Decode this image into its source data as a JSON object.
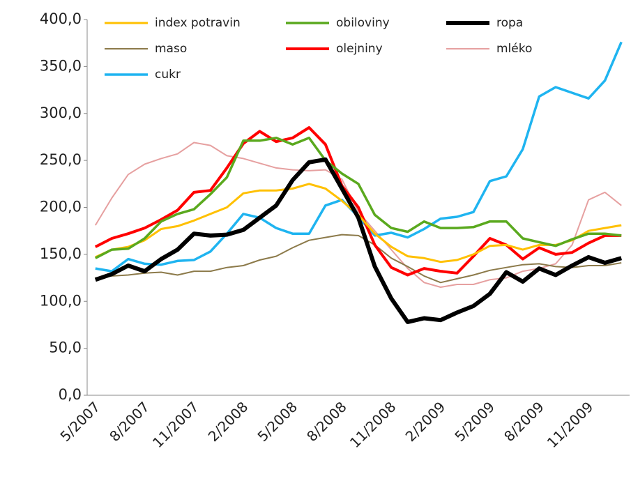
{
  "chart_data": {
    "type": "line",
    "categories": [
      "5/2007",
      null,
      null,
      "8/2007",
      null,
      null,
      "11/2007",
      null,
      null,
      "2/2008",
      null,
      null,
      "5/2008",
      null,
      null,
      "8/2008",
      null,
      null,
      "11/2008",
      null,
      null,
      "2/2009",
      null,
      null,
      "5/2009",
      null,
      null,
      "8/2009",
      null,
      null,
      "11/2009",
      null,
      null
    ],
    "ylim": [
      0,
      400
    ],
    "yticks": [
      {
        "value": 0,
        "label": "0,0"
      },
      {
        "value": 50,
        "label": "50,0"
      },
      {
        "value": 100,
        "label": "100,0"
      },
      {
        "value": 150,
        "label": "150,0"
      },
      {
        "value": 200,
        "label": "200,0"
      },
      {
        "value": 250,
        "label": "250,0"
      },
      {
        "value": 300,
        "label": "300,0"
      },
      {
        "value": 350,
        "label": "350,0"
      },
      {
        "value": 400,
        "label": "400,0"
      }
    ],
    "grid": false,
    "legend": "top",
    "series": [
      {
        "name": "index potravin",
        "color": "#ffc000",
        "line_width": 3,
        "values": [
          147,
          155,
          158,
          165,
          177,
          180,
          186,
          193,
          200,
          215,
          218,
          218,
          220,
          225,
          220,
          207,
          192,
          172,
          158,
          148,
          146,
          142,
          144,
          150,
          159,
          160,
          155,
          160,
          160,
          165,
          175,
          178,
          181
        ]
      },
      {
        "name": "obiloviny",
        "color": "#5aa91e",
        "line_width": 3.5,
        "values": [
          146,
          155,
          156,
          167,
          185,
          193,
          198,
          214,
          232,
          271,
          271,
          274,
          267,
          274,
          250,
          236,
          225,
          192,
          178,
          174,
          185,
          178,
          178,
          179,
          185,
          185,
          167,
          163,
          159,
          166,
          172,
          172,
          170
        ]
      },
      {
        "name": "ropa",
        "color": "#000000",
        "line_width": 6,
        "values": [
          123,
          129,
          138,
          132,
          145,
          155,
          172,
          170,
          171,
          176,
          189,
          202,
          229,
          248,
          251,
          220,
          189,
          137,
          103,
          78,
          82,
          80,
          88,
          95,
          108,
          131,
          121,
          135,
          128,
          138,
          147,
          141,
          146
        ]
      },
      {
        "name": "maso",
        "color": "#8c7a4a",
        "line_width": 2,
        "values": [
          125,
          127,
          128,
          130,
          131,
          128,
          132,
          132,
          136,
          138,
          144,
          148,
          157,
          165,
          168,
          171,
          170,
          160,
          146,
          137,
          127,
          120,
          124,
          128,
          133,
          136,
          139,
          140,
          137,
          136,
          138,
          138,
          141
        ]
      },
      {
        "name": "olejniny",
        "color": "#ff0000",
        "line_width": 4,
        "values": [
          158,
          167,
          172,
          178,
          187,
          197,
          216,
          218,
          242,
          268,
          281,
          270,
          274,
          285,
          267,
          223,
          200,
          160,
          136,
          128,
          135,
          132,
          130,
          148,
          167,
          160,
          145,
          157,
          150,
          152,
          162,
          170,
          170
        ]
      },
      {
        "name": "mléko",
        "color": "#e6a0a0",
        "line_width": 2,
        "values": [
          181,
          210,
          235,
          246,
          252,
          257,
          269,
          266,
          255,
          252,
          247,
          242,
          240,
          239,
          240,
          230,
          195,
          175,
          155,
          135,
          120,
          115,
          118,
          118,
          123,
          125,
          132,
          135,
          140,
          160,
          208,
          216,
          202
        ]
      },
      {
        "name": "cukr",
        "color": "#1fb4f0",
        "line_width": 3.5,
        "values": [
          135,
          132,
          145,
          140,
          139,
          143,
          144,
          153,
          172,
          193,
          189,
          178,
          172,
          172,
          202,
          208,
          190,
          170,
          173,
          168,
          177,
          188,
          190,
          195,
          228,
          233,
          262,
          318,
          328,
          322,
          316,
          335,
          376
        ]
      }
    ]
  }
}
